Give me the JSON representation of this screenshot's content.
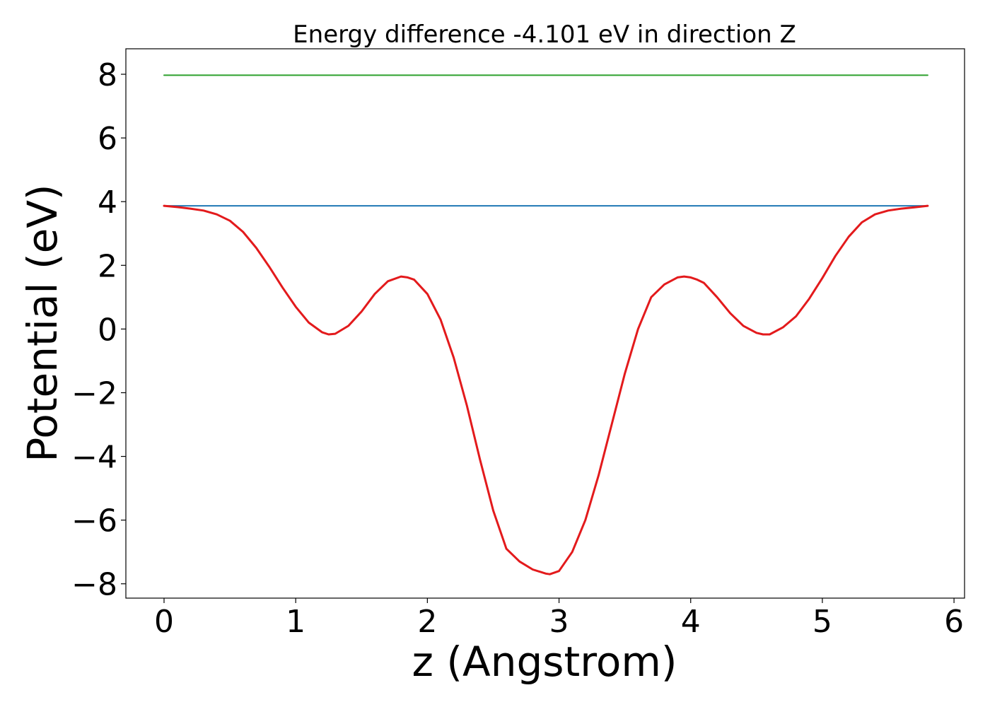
{
  "chart_data": {
    "type": "line",
    "title": "Energy difference -4.101 eV in direction Z",
    "xlabel": "z (Angstrom)",
    "ylabel": "Potential (eV)",
    "xlim": [
      -0.29,
      6.08
    ],
    "ylim": [
      -8.45,
      8.8
    ],
    "x_ticks": [
      0,
      1,
      2,
      3,
      4,
      5,
      6
    ],
    "x_tick_labels": [
      "0",
      "1",
      "2",
      "3",
      "4",
      "5",
      "6"
    ],
    "y_ticks": [
      8,
      6,
      4,
      2,
      0,
      -2,
      -4,
      -6,
      -8
    ],
    "y_tick_labels": [
      "8",
      "6",
      "4",
      "2",
      "0",
      "−2",
      "−4",
      "−6",
      "−8"
    ],
    "grid": false,
    "legend": "none",
    "series": [
      {
        "color": "#2ca02c",
        "x": [
          0,
          5.8
        ],
        "y": [
          7.97,
          7.97
        ]
      },
      {
        "color": "#1f77b4",
        "x": [
          0,
          5.8
        ],
        "y": [
          3.87,
          3.87
        ]
      },
      {
        "color": "#e31a1c",
        "x": [
          0,
          0.1,
          0.2,
          0.3,
          0.4,
          0.5,
          0.6,
          0.7,
          0.8,
          0.9,
          1.0,
          1.1,
          1.2,
          1.25,
          1.3,
          1.4,
          1.5,
          1.6,
          1.7,
          1.8,
          1.85,
          1.9,
          2.0,
          2.1,
          2.2,
          2.3,
          2.4,
          2.5,
          2.6,
          2.7,
          2.8,
          2.9,
          2.93,
          3.0,
          3.1,
          3.2,
          3.3,
          3.4,
          3.5,
          3.6,
          3.7,
          3.8,
          3.9,
          3.95,
          4.0,
          4.05,
          4.1,
          4.2,
          4.3,
          4.4,
          4.5,
          4.55,
          4.6,
          4.7,
          4.8,
          4.9,
          5.0,
          5.1,
          5.2,
          5.3,
          5.4,
          5.5,
          5.6,
          5.7,
          5.8
        ],
        "y": [
          3.87,
          3.83,
          3.78,
          3.72,
          3.6,
          3.4,
          3.05,
          2.55,
          1.95,
          1.3,
          0.7,
          0.2,
          -0.1,
          -0.17,
          -0.15,
          0.1,
          0.55,
          1.1,
          1.5,
          1.65,
          1.62,
          1.55,
          1.1,
          0.3,
          -0.9,
          -2.4,
          -4.1,
          -5.7,
          -6.9,
          -7.3,
          -7.55,
          -7.68,
          -7.7,
          -7.6,
          -7.0,
          -6.0,
          -4.6,
          -3.0,
          -1.4,
          0.0,
          1.0,
          1.4,
          1.62,
          1.65,
          1.62,
          1.55,
          1.45,
          1.0,
          0.5,
          0.1,
          -0.12,
          -0.17,
          -0.17,
          0.05,
          0.4,
          0.95,
          1.6,
          2.3,
          2.9,
          3.35,
          3.6,
          3.72,
          3.78,
          3.82,
          3.87
        ]
      }
    ]
  }
}
